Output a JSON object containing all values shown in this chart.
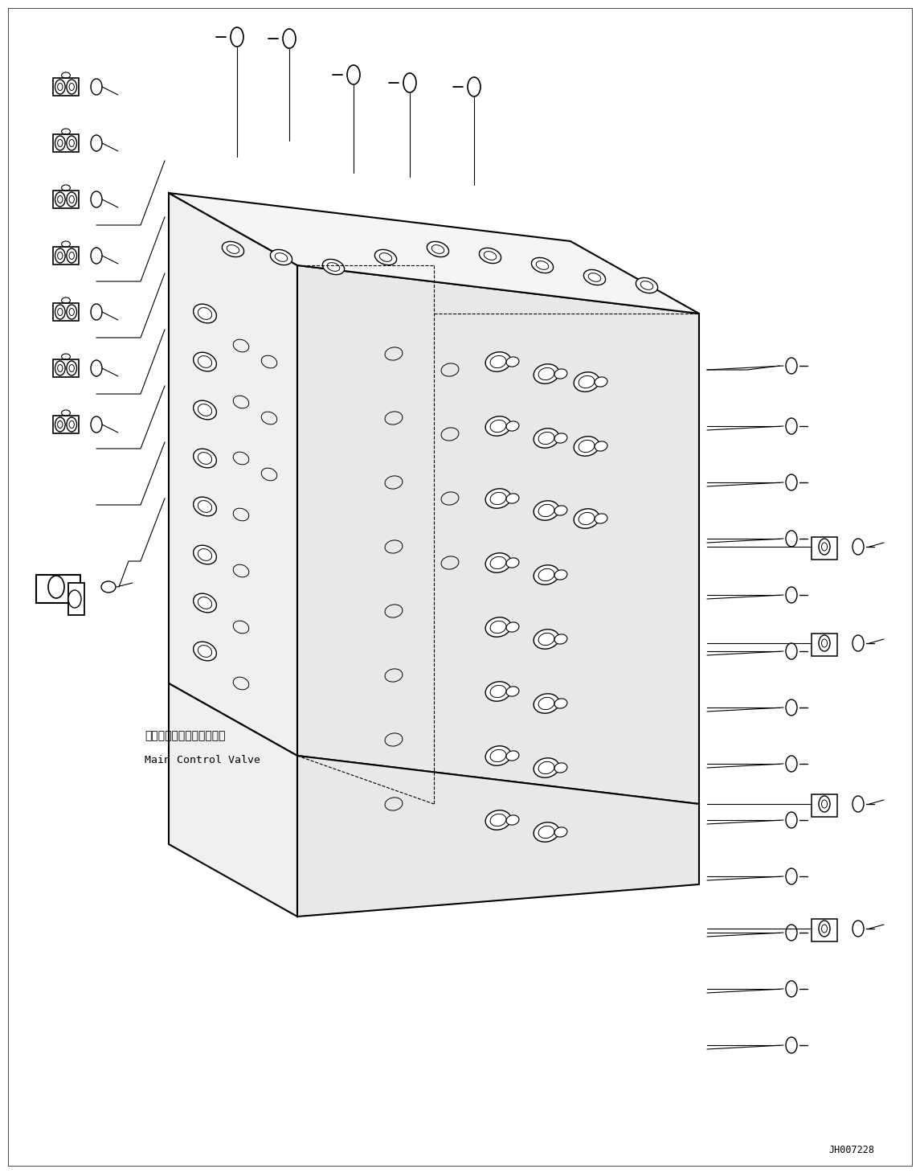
{
  "bg_color": "#ffffff",
  "line_color": "#000000",
  "label_jp": "メインコントロールバルブ",
  "label_en": "Main Control Valve",
  "watermark": "JH007228",
  "fig_width": 11.45,
  "fig_height": 14.59
}
